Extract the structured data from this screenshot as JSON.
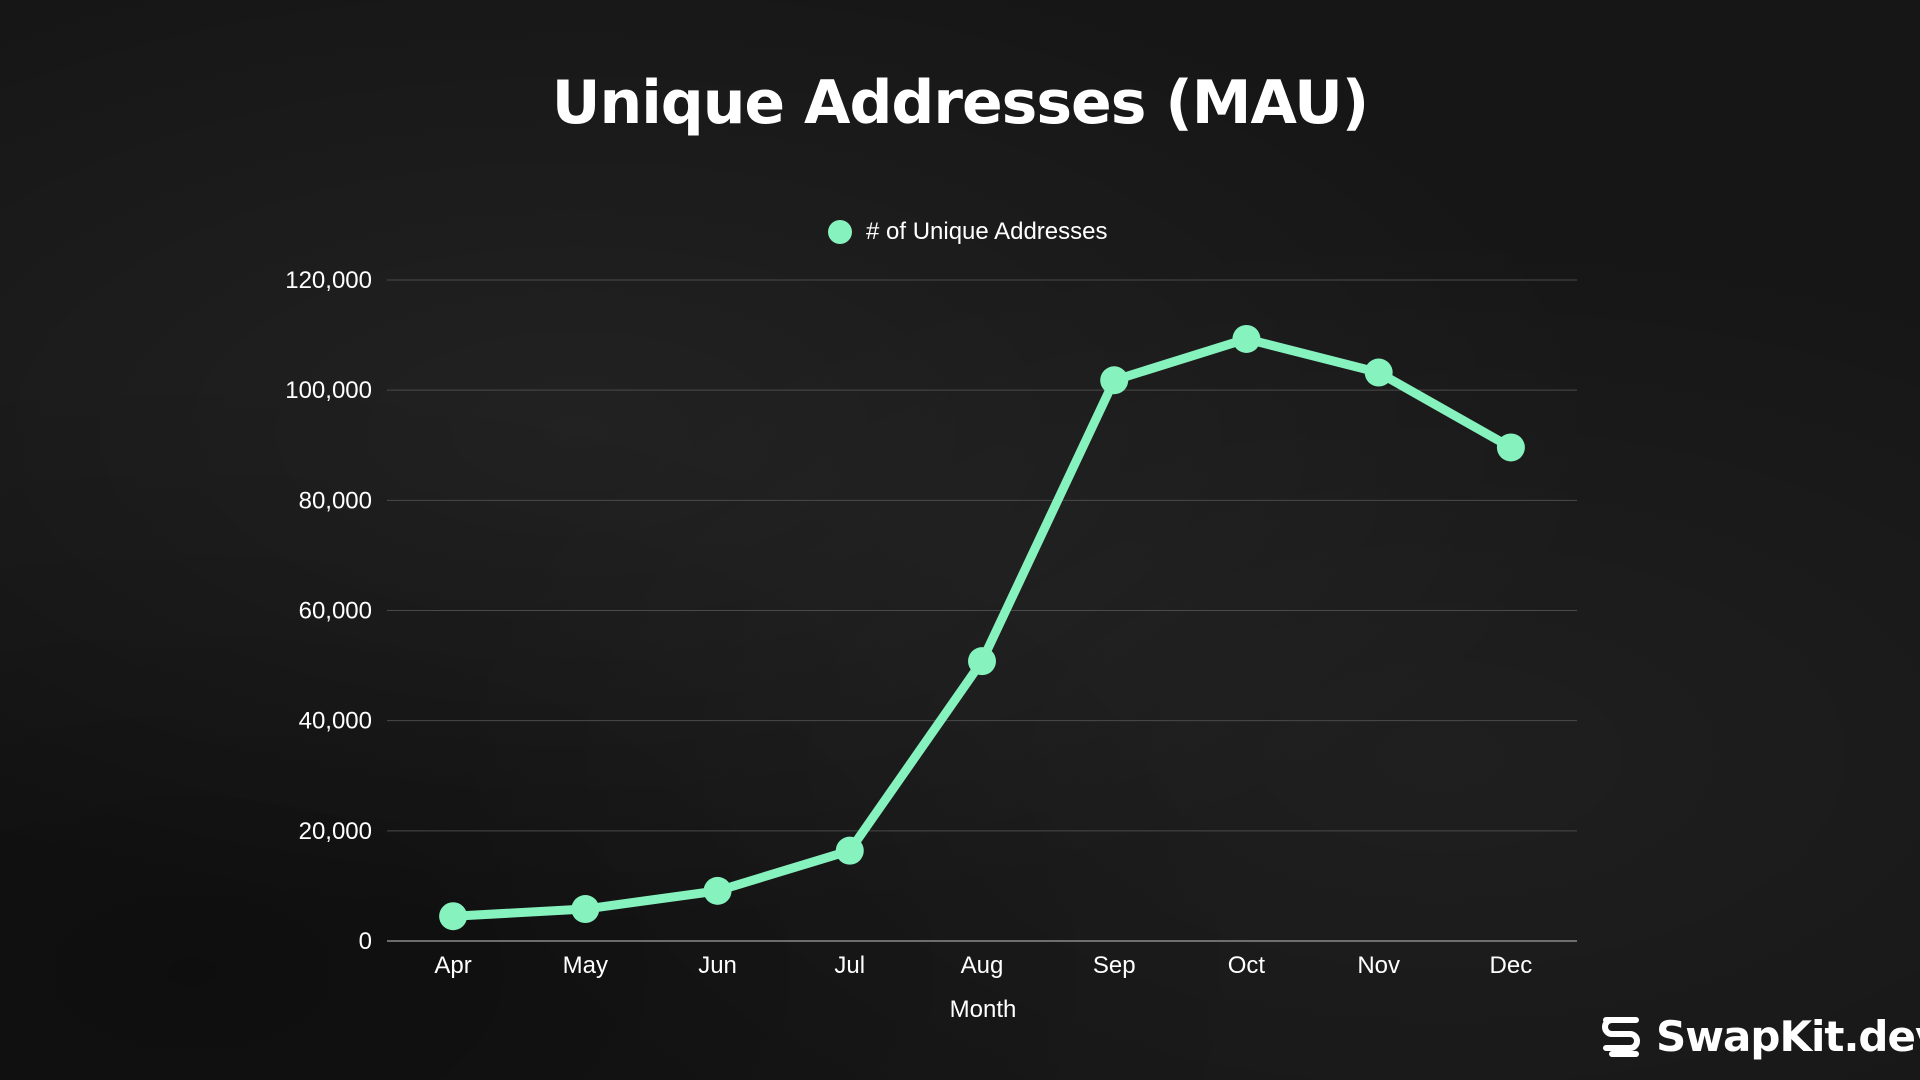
{
  "chart_data": {
    "type": "line",
    "title": "Unique Addresses (MAU)",
    "xlabel": "Month",
    "ylabel": "",
    "categories": [
      "Apr",
      "May",
      "Jun",
      "Jul",
      "Aug",
      "Sep",
      "Oct",
      "Nov",
      "Dec"
    ],
    "series": [
      {
        "name": "# of Unique Addresses",
        "values": [
          4500,
          5800,
          9100,
          16400,
          50800,
          101800,
          109300,
          103200,
          89600
        ]
      }
    ],
    "ylim": [
      0,
      120000
    ],
    "yticks": [
      "0",
      "20,000",
      "40,000",
      "60,000",
      "80,000",
      "100,000",
      "120,000"
    ],
    "grid": true,
    "legend": "top-center",
    "colors": {
      "series": "#86f2bd",
      "text": "#ffffff",
      "grid": "#4a4a4a",
      "background": "#161616"
    }
  },
  "brand": {
    "name": "SwapKit.dev",
    "icon": "swapkit-logo-icon"
  }
}
